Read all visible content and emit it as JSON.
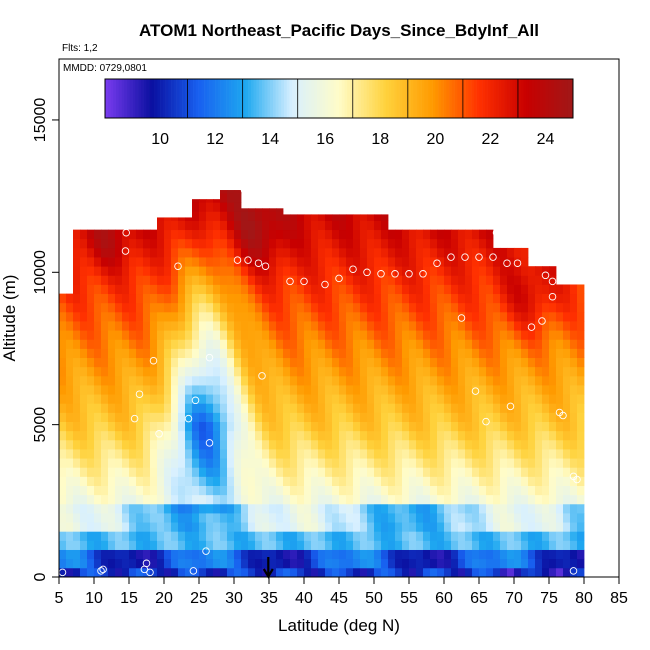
{
  "chart_data": {
    "type": "heatmap",
    "title": "ATOM1 Northeast_Pacific Days_Since_BdyInf_All",
    "subtitle_flights": "Flts: 1,2",
    "subtitle_dates": "MMDD: 0729,0801",
    "xlabel": "Latitude (deg N)",
    "ylabel": "Altitude (m)",
    "xlim": [
      5,
      85
    ],
    "ylim": [
      0,
      17000
    ],
    "x_ticks": [
      "5",
      "10",
      "15",
      "20",
      "25",
      "30",
      "35",
      "40",
      "45",
      "50",
      "55",
      "60",
      "65",
      "70",
      "75",
      "80",
      "85"
    ],
    "y_ticks": [
      "0",
      "5000",
      "10000",
      "15000"
    ],
    "colorbar": {
      "range": [
        8,
        25
      ],
      "ticks": [
        "10",
        "12",
        "14",
        "16",
        "18",
        "20",
        "22",
        "24"
      ],
      "colors": [
        "#7a3cf0",
        "#0a0fa0",
        "#1860f0",
        "#1ea8f0",
        "#d8f0ff",
        "#fffcc8",
        "#ffd23c",
        "#ff9a00",
        "#ff3000",
        "#c80000",
        "#a01818"
      ]
    },
    "grid": false,
    "legend": "colorbar top",
    "value_ranges_by_altitude": [
      {
        "altitude_band": "0-1000 m",
        "value_range_days": [
          8,
          13
        ]
      },
      {
        "altitude_band": "1000-2500 m",
        "value_range_days": [
          13,
          16
        ]
      },
      {
        "altitude_band": "2500-5000 m",
        "value_range_days": [
          16,
          19
        ]
      },
      {
        "altitude_band": "5000-9000 m",
        "value_range_days": [
          19,
          22
        ]
      },
      {
        "altitude_band": "9000-12700 m",
        "value_range_days": [
          21,
          25
        ]
      }
    ],
    "coverage": {
      "lat_range": [
        5,
        80
      ],
      "alt_max_m": 12700
    },
    "flight_obs_points": [
      [
        5.5,
        150
      ],
      [
        11,
        200
      ],
      [
        11.3,
        250
      ],
      [
        17.2,
        250
      ],
      [
        17.5,
        450
      ],
      [
        18,
        150
      ],
      [
        24.2,
        200
      ],
      [
        26,
        850
      ],
      [
        15.8,
        5200
      ],
      [
        16.5,
        6000
      ],
      [
        18.5,
        7100
      ],
      [
        19.3,
        4700
      ],
      [
        23.5,
        5200
      ],
      [
        24.5,
        5800
      ],
      [
        26.5,
        4400
      ],
      [
        26.5,
        7200
      ],
      [
        34,
        6600
      ],
      [
        14.5,
        10700
      ],
      [
        14.6,
        11300
      ],
      [
        22,
        10200
      ],
      [
        30.5,
        10400
      ],
      [
        32,
        10400
      ],
      [
        33.5,
        10300
      ],
      [
        34.5,
        10200
      ],
      [
        31.5,
        12700
      ],
      [
        38,
        9700
      ],
      [
        40,
        9700
      ],
      [
        43,
        9600
      ],
      [
        45,
        9800
      ],
      [
        47,
        10100
      ],
      [
        49,
        10000
      ],
      [
        51,
        9950
      ],
      [
        53,
        9950
      ],
      [
        55,
        9950
      ],
      [
        57,
        9950
      ],
      [
        59,
        10300
      ],
      [
        61,
        10500
      ],
      [
        63,
        10500
      ],
      [
        65,
        10500
      ],
      [
        67,
        10500
      ],
      [
        67.5,
        11300
      ],
      [
        69,
        10300
      ],
      [
        70.5,
        10300
      ],
      [
        72.5,
        8200
      ],
      [
        74,
        8400
      ],
      [
        74.5,
        9900
      ],
      [
        75.5,
        9200
      ],
      [
        75.5,
        9700
      ],
      [
        62.5,
        8500
      ],
      [
        64.5,
        6100
      ],
      [
        66,
        5100
      ],
      [
        69.5,
        5600
      ],
      [
        76.5,
        5400
      ],
      [
        77,
        5300
      ],
      [
        78.5,
        3300
      ],
      [
        79,
        3200
      ],
      [
        78.5,
        200
      ]
    ],
    "annotations": [
      {
        "type": "arrow",
        "x": 34.9,
        "pointing": "down",
        "near_altitude": 0
      }
    ]
  }
}
